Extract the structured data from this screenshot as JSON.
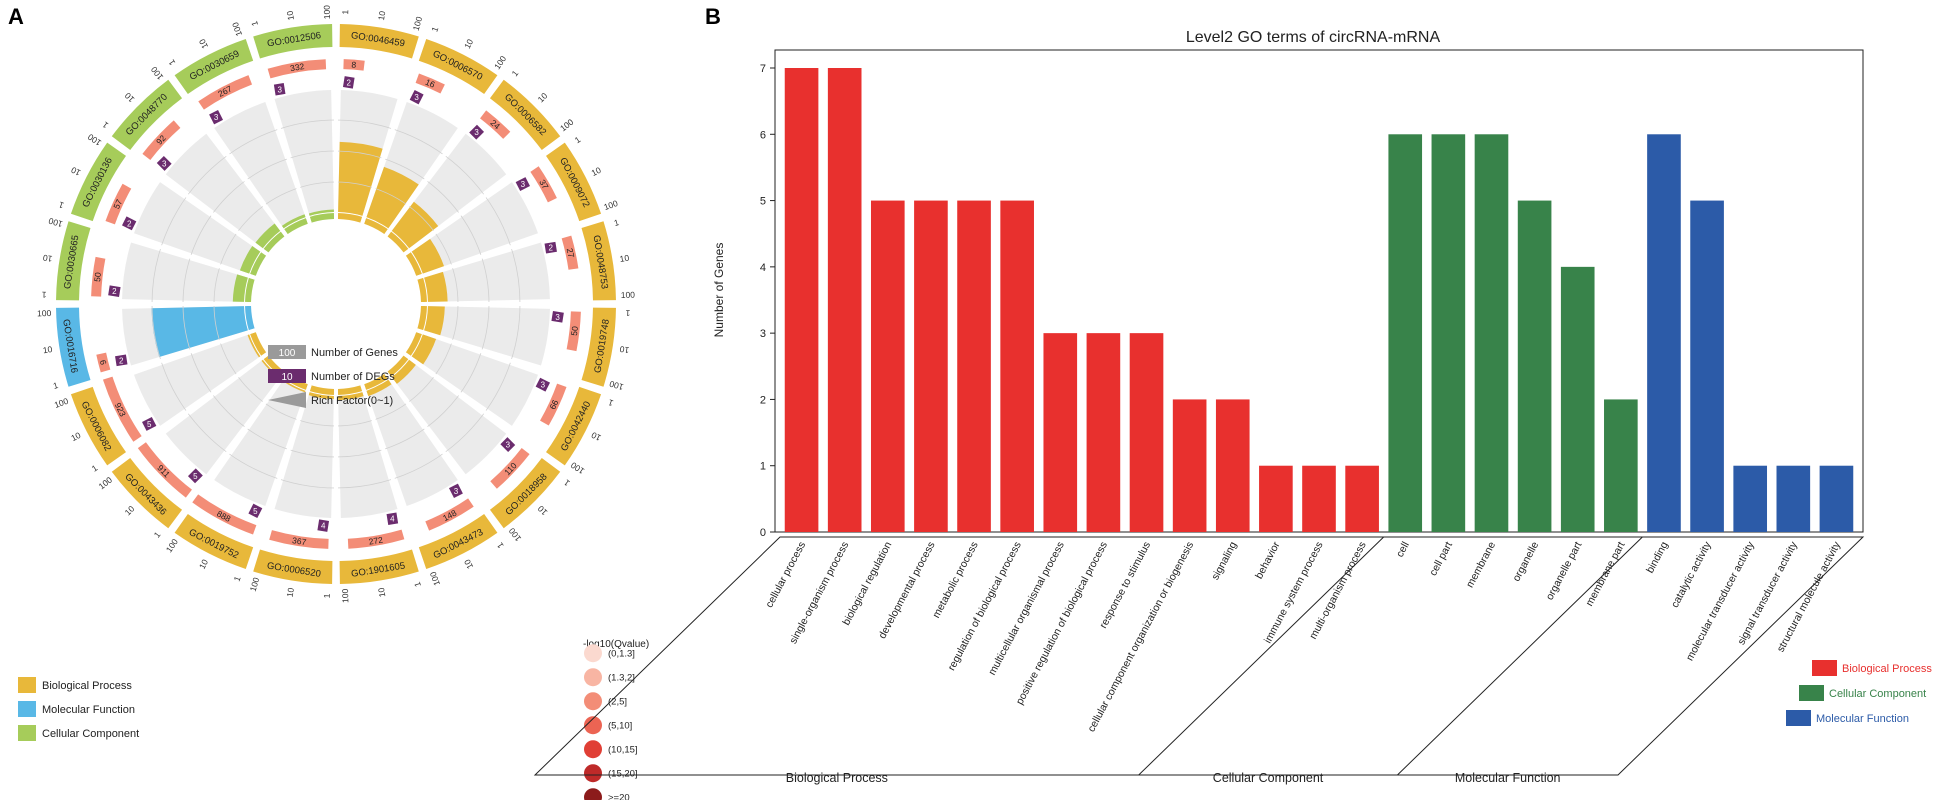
{
  "panel_a": {
    "label": "A",
    "go_terms": [
      {
        "id": "GO:0046459",
        "category": "Biological Process",
        "genes": 8,
        "degs": 2,
        "rich": 0.25,
        "qbin": 2
      },
      {
        "id": "GO:0006570",
        "category": "Biological Process",
        "genes": 16,
        "degs": 3,
        "rich": 0.19,
        "qbin": 2
      },
      {
        "id": "GO:0006582",
        "category": "Biological Process",
        "genes": 24,
        "degs": 3,
        "rich": 0.13,
        "qbin": 2
      },
      {
        "id": "GO:0009072",
        "category": "Biological Process",
        "genes": 37,
        "degs": 3,
        "rich": 0.08,
        "qbin": 2
      },
      {
        "id": "GO:0048753",
        "category": "Biological Process",
        "genes": 27,
        "degs": 2,
        "rich": 0.07,
        "qbin": 2
      },
      {
        "id": "GO:0019748",
        "category": "Biological Process",
        "genes": 50,
        "degs": 3,
        "rich": 0.06,
        "qbin": 2
      },
      {
        "id": "GO:0042440",
        "category": "Biological Process",
        "genes": 66,
        "degs": 3,
        "rich": 0.05,
        "qbin": 2
      },
      {
        "id": "GO:0018958",
        "category": "Biological Process",
        "genes": 110,
        "degs": 3,
        "rich": 0.03,
        "qbin": 2
      },
      {
        "id": "GO:0043473",
        "category": "Biological Process",
        "genes": 148,
        "degs": 3,
        "rich": 0.02,
        "qbin": 2
      },
      {
        "id": "GO:1901605",
        "category": "Biological Process",
        "genes": 272,
        "degs": 4,
        "rich": 0.015,
        "qbin": 2
      },
      {
        "id": "GO:0006520",
        "category": "Biological Process",
        "genes": 367,
        "degs": 4,
        "rich": 0.011,
        "qbin": 2
      },
      {
        "id": "GO:0019752",
        "category": "Biological Process",
        "genes": 888,
        "degs": 5,
        "rich": 0.006,
        "qbin": 2
      },
      {
        "id": "GO:0043436",
        "category": "Biological Process",
        "genes": 911,
        "degs": 5,
        "rich": 0.006,
        "qbin": 2
      },
      {
        "id": "GO:0006082",
        "category": "Biological Process",
        "genes": 923,
        "degs": 5,
        "rich": 0.006,
        "qbin": 2
      },
      {
        "id": "GO:0016716",
        "category": "Molecular Function",
        "genes": 6,
        "degs": 2,
        "rich": 0.33,
        "qbin": 2
      },
      {
        "id": "GO:0030665",
        "category": "Cellular Component",
        "genes": 50,
        "degs": 2,
        "rich": 0.04,
        "qbin": 2
      },
      {
        "id": "GO:0030136",
        "category": "Cellular Component",
        "genes": 57,
        "degs": 2,
        "rich": 0.035,
        "qbin": 2
      },
      {
        "id": "GO:0048770",
        "category": "Cellular Component",
        "genes": 92,
        "degs": 3,
        "rich": 0.033,
        "qbin": 2
      },
      {
        "id": "GO:0030659",
        "category": "Cellular Component",
        "genes": 267,
        "degs": 3,
        "rich": 0.011,
        "qbin": 2
      },
      {
        "id": "GO:0012506",
        "category": "Cellular Component",
        "genes": 332,
        "degs": 3,
        "rich": 0.009,
        "qbin": 2
      }
    ],
    "scale_ticks": [
      "1",
      "10",
      "100"
    ],
    "inner_legend": {
      "genes_swatch": "100",
      "genes_label": "Number of Genes",
      "degs_swatch": "10",
      "degs_label": "Number of DEGs",
      "rich_label": "Rich Factor(0~1)"
    },
    "category_legend": [
      {
        "label": "Biological Process",
        "color": "#e8b83a"
      },
      {
        "label": "Molecular Function",
        "color": "#59b8e6"
      },
      {
        "label": "Cellular Component",
        "color": "#a6cc5a"
      }
    ],
    "qvalue_legend": {
      "title": "-log10(Qvalue)",
      "bins": [
        {
          "label": "(0,1.3]",
          "color": "#fbd9cf"
        },
        {
          "label": "(1.3,2]",
          "color": "#f8b5a3"
        },
        {
          "label": "(2,5]",
          "color": "#f38d77"
        },
        {
          "label": "(5,10]",
          "color": "#ec6453"
        },
        {
          "label": "(10,15]",
          "color": "#e03f35"
        },
        {
          "label": "(15,20]",
          "color": "#be2a29"
        },
        {
          "label": ">=20",
          "color": "#8c1b1b"
        }
      ]
    },
    "colors": {
      "degs_box": "#6b2c6e",
      "genes_box": "#9a9a9a",
      "rich_bg": "#ebebeb"
    }
  },
  "panel_b": {
    "label": "B",
    "chart_data": {
      "type": "bar",
      "title": "Level2 GO terms of circRNA-mRNA",
      "ylabel": "Number of Genes",
      "ylim": [
        0,
        7
      ],
      "yticks": [
        0,
        1,
        2,
        3,
        4,
        5,
        6,
        7
      ],
      "categories": [
        "cellular process",
        "single-organism process",
        "biological regulation",
        "developmental process",
        "metabolic process",
        "regulation of biological process",
        "multicellular organismal process",
        "positive regulation of biological process",
        "response to stimulus",
        "cellular component organization or biogenesis",
        "signaling",
        "behavior",
        "immune system process",
        "multi-organism process",
        "cell",
        "cell part",
        "membrane",
        "organelle",
        "organelle part",
        "membrane part",
        "binding",
        "catalytic activity",
        "molecular transducer activity",
        "signal transducer activity",
        "structural molecule activity"
      ],
      "values": [
        7,
        7,
        5,
        5,
        5,
        5,
        3,
        3,
        3,
        2,
        2,
        1,
        1,
        1,
        6,
        6,
        6,
        5,
        4,
        2,
        6,
        5,
        1,
        1,
        1
      ],
      "groups": [
        {
          "name": "Biological Process",
          "start": 0,
          "end": 13,
          "color": "#e8302e"
        },
        {
          "name": "Cellular Component",
          "start": 14,
          "end": 19,
          "color": "#38834a"
        },
        {
          "name": "Molecular Function",
          "start": 20,
          "end": 24,
          "color": "#2c5ba8"
        }
      ],
      "legend": [
        {
          "label": "Biological Process",
          "color": "#e8302e"
        },
        {
          "label": "Cellular Component",
          "color": "#38834a"
        },
        {
          "label": "Molecular Function",
          "color": "#2c5ba8"
        }
      ]
    }
  }
}
